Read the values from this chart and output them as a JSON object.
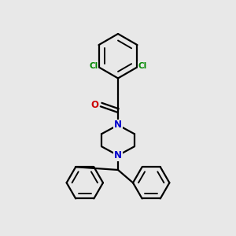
{
  "bg_color": "#e8e8e8",
  "bond_color": "#000000",
  "N_color": "#0000cc",
  "O_color": "#cc0000",
  "Cl_color": "#008800",
  "line_width": 1.6,
  "figsize": [
    3.0,
    3.0
  ],
  "dpi": 100,
  "xlim": [
    0,
    10
  ],
  "ylim": [
    0,
    10
  ]
}
